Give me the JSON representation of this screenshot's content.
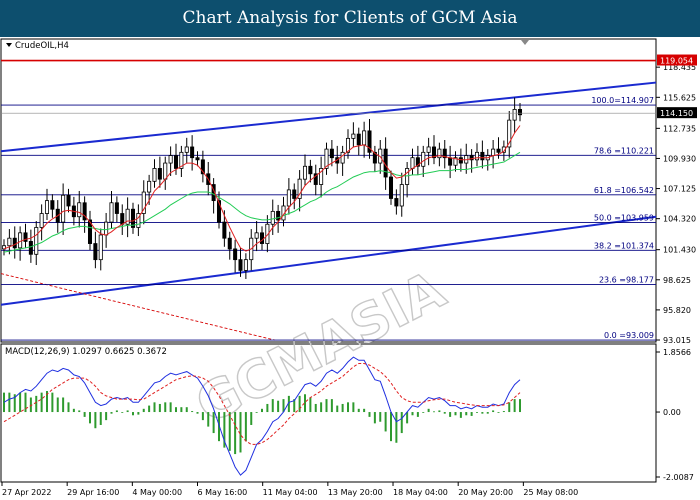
{
  "header": {
    "title": "Chart Analysis for Clients of GCM Asia"
  },
  "chart_window": {
    "symbol_label": "CrudeOIL,H4",
    "macd_label": "MACD(12,26,9) 1.0297 0.6625 0.3672",
    "watermark": "GCMASIA"
  },
  "colors": {
    "title_bg": "#0d4f6e",
    "up_candle": "#ffffff",
    "down_candle": "#000000",
    "channel": "#1a2ad0",
    "ma_fast": "#e02020",
    "ma_slow": "#22cc55",
    "resistance": "#d60000",
    "macd_hist": "#2e9a2e",
    "macd_main": "#2030e0",
    "macd_signal": "#e02020"
  },
  "chart_data": [
    {
      "type": "candlestick",
      "title": "CrudeOIL,H4",
      "ylim": [
        93.015,
        120.5
      ],
      "price_ticks": [
        "118.435",
        "115.625",
        "112.735",
        "109.930",
        "107.125",
        "104.320",
        "101.430",
        "98.625",
        "95.820",
        "93.015"
      ],
      "time_ticks": [
        "27 Apr 2022",
        "29 Apr 16:00",
        "4 May 00:00",
        "6 May 16:00",
        "11 May 04:00",
        "13 May 20:00",
        "18 May 04:00",
        "20 May 20:00",
        "25 May 08:00"
      ],
      "current_price": 114.15,
      "resistance_level": 119.054,
      "fibonacci_levels": [
        {
          "label": "100.0=114.907",
          "value": 114.907
        },
        {
          "label": "78.6 =110.221",
          "value": 110.221
        },
        {
          "label": "61.8 =106.542",
          "value": 106.542
        },
        {
          "label": "50.0 =103.959",
          "value": 103.959
        },
        {
          "label": "38.2 =101.374",
          "value": 101.374
        },
        {
          "label": "23.6 =98.177",
          "value": 98.177
        },
        {
          "label": "0.0 =93.009",
          "value": 93.009
        }
      ],
      "closes": [
        101.8,
        102.5,
        101.6,
        103.0,
        102.2,
        101.0,
        103.5,
        104.8,
        106.0,
        105.2,
        104.0,
        106.5,
        105.5,
        104.5,
        105.8,
        104.2,
        102.0,
        100.5,
        102.8,
        104.0,
        105.8,
        104.8,
        103.8,
        105.2,
        103.5,
        104.8,
        106.8,
        107.8,
        109.0,
        108.0,
        109.5,
        110.2,
        109.0,
        110.5,
        111.0,
        110.0,
        109.8,
        108.5,
        107.5,
        106.0,
        104.0,
        102.5,
        101.5,
        100.5,
        99.5,
        100.5,
        102.5,
        103.0,
        102.0,
        103.8,
        105.0,
        104.2,
        105.5,
        107.0,
        106.2,
        108.0,
        109.2,
        108.5,
        107.5,
        109.0,
        110.8,
        110.0,
        109.5,
        110.5,
        111.8,
        112.2,
        111.2,
        112.5,
        110.5,
        109.5,
        110.8,
        108.2,
        106.2,
        105.5,
        107.5,
        109.0,
        110.0,
        109.2,
        110.5,
        111.0,
        110.0,
        110.8,
        110.0,
        109.3,
        110.0,
        109.5,
        110.2,
        109.8,
        110.5,
        109.8,
        110.2,
        110.8,
        110.5,
        111.0,
        113.5,
        114.5,
        114.0
      ],
      "ma_fast": [
        101.5,
        101.7,
        101.9,
        102.2,
        102.4,
        102.5,
        102.8,
        103.3,
        103.9,
        104.3,
        104.6,
        105.0,
        105.1,
        105.0,
        104.9,
        104.6,
        104.0,
        103.3,
        102.9,
        102.8,
        103.1,
        103.5,
        103.8,
        104.1,
        104.1,
        104.4,
        105.2,
        106.0,
        106.9,
        107.4,
        108.0,
        108.6,
        108.9,
        109.2,
        109.5,
        109.5,
        109.3,
        108.7,
        108.0,
        107.0,
        105.8,
        104.6,
        103.5,
        102.5,
        101.6,
        101.3,
        101.5,
        102.0,
        102.3,
        102.8,
        103.5,
        104.0,
        104.7,
        105.4,
        105.9,
        106.6,
        107.4,
        107.9,
        108.3,
        108.7,
        109.2,
        109.5,
        109.8,
        110.2,
        110.6,
        111.0,
        111.1,
        111.2,
        110.9,
        110.4,
        110.1,
        109.3,
        108.6,
        108.1,
        108.2,
        108.6,
        109.0,
        109.3,
        109.7,
        110.0,
        110.1,
        110.2,
        110.1,
        110.0,
        109.9,
        109.8,
        109.8,
        109.9,
        110.0,
        110.0,
        110.0,
        110.2,
        110.3,
        110.6,
        111.4,
        112.3,
        113.0
      ],
      "ma_slow": [
        101.2,
        101.3,
        101.4,
        101.5,
        101.6,
        101.7,
        101.9,
        102.1,
        102.4,
        102.7,
        102.9,
        103.2,
        103.4,
        103.5,
        103.6,
        103.6,
        103.5,
        103.4,
        103.3,
        103.3,
        103.4,
        103.5,
        103.6,
        103.7,
        103.7,
        103.8,
        104.0,
        104.3,
        104.6,
        104.9,
        105.2,
        105.6,
        105.9,
        106.2,
        106.5,
        106.7,
        106.8,
        106.8,
        106.8,
        106.6,
        106.3,
        106.0,
        105.7,
        105.3,
        104.9,
        104.6,
        104.4,
        104.3,
        104.2,
        104.2,
        104.3,
        104.4,
        104.6,
        104.8,
        105.0,
        105.3,
        105.6,
        105.9,
        106.1,
        106.4,
        106.8,
        107.1,
        107.3,
        107.6,
        107.9,
        108.2,
        108.4,
        108.6,
        108.7,
        108.7,
        108.8,
        108.7,
        108.6,
        108.4,
        108.3,
        108.3,
        108.4,
        108.4,
        108.5,
        108.6,
        108.7,
        108.8,
        108.8,
        108.8,
        108.9,
        108.9,
        108.9,
        109.0,
        109.1,
        109.2,
        109.3,
        109.4,
        109.5,
        109.6,
        109.9,
        110.2,
        110.5
      ]
    },
    {
      "type": "macd",
      "title": "MACD(12,26,9)",
      "ylim": [
        -2.0087,
        1.8566
      ],
      "ticks": [
        "1.8566",
        "0.00",
        "-2.0087"
      ],
      "macd_main": [
        0.3,
        0.4,
        0.45,
        0.6,
        0.7,
        0.65,
        0.8,
        1.0,
        1.2,
        1.3,
        1.25,
        1.35,
        1.3,
        1.15,
        1.1,
        0.9,
        0.6,
        0.3,
        0.2,
        0.25,
        0.4,
        0.45,
        0.4,
        0.45,
        0.3,
        0.3,
        0.5,
        0.7,
        0.9,
        0.95,
        1.1,
        1.2,
        1.15,
        1.2,
        1.25,
        1.15,
        1.05,
        0.8,
        0.5,
        0.1,
        -0.4,
        -0.9,
        -1.3,
        -1.7,
        -1.95,
        -1.8,
        -1.4,
        -1.0,
        -0.85,
        -0.6,
        -0.3,
        -0.2,
        0.0,
        0.3,
        0.35,
        0.6,
        0.85,
        0.9,
        0.8,
        0.95,
        1.2,
        1.3,
        1.2,
        1.35,
        1.55,
        1.7,
        1.6,
        1.6,
        1.3,
        1.0,
        0.95,
        0.5,
        0.0,
        -0.3,
        -0.2,
        0.0,
        0.2,
        0.15,
        0.3,
        0.45,
        0.4,
        0.45,
        0.35,
        0.2,
        0.2,
        0.1,
        0.15,
        0.1,
        0.2,
        0.15,
        0.15,
        0.25,
        0.2,
        0.25,
        0.6,
        0.85,
        1.0
      ],
      "macd_signal": [
        -0.3,
        -0.2,
        -0.1,
        0.0,
        0.1,
        0.2,
        0.3,
        0.4,
        0.55,
        0.7,
        0.8,
        0.9,
        1.0,
        1.05,
        1.05,
        1.05,
        0.95,
        0.8,
        0.6,
        0.5,
        0.45,
        0.4,
        0.4,
        0.4,
        0.4,
        0.38,
        0.4,
        0.5,
        0.6,
        0.7,
        0.8,
        0.9,
        1.0,
        1.05,
        1.1,
        1.12,
        1.1,
        1.05,
        0.95,
        0.75,
        0.5,
        0.2,
        -0.1,
        -0.4,
        -0.7,
        -0.9,
        -1.0,
        -1.0,
        -0.95,
        -0.85,
        -0.7,
        -0.55,
        -0.4,
        -0.2,
        -0.05,
        0.1,
        0.3,
        0.45,
        0.55,
        0.65,
        0.8,
        0.9,
        1.0,
        1.1,
        1.25,
        1.4,
        1.5,
        1.5,
        1.45,
        1.35,
        1.25,
        1.1,
        0.9,
        0.65,
        0.45,
        0.35,
        0.3,
        0.3,
        0.3,
        0.35,
        0.38,
        0.4,
        0.4,
        0.35,
        0.3,
        0.28,
        0.25,
        0.22,
        0.2,
        0.2,
        0.2,
        0.2,
        0.2,
        0.22,
        0.3,
        0.45,
        0.6
      ],
      "histogram": [
        0.6,
        0.6,
        0.55,
        0.6,
        0.6,
        0.45,
        0.5,
        0.6,
        0.65,
        0.6,
        0.45,
        0.45,
        0.3,
        0.1,
        0.05,
        -0.15,
        -0.35,
        -0.5,
        -0.4,
        -0.25,
        -0.05,
        0.05,
        0.0,
        0.05,
        -0.1,
        -0.08,
        0.1,
        0.2,
        0.3,
        0.25,
        0.3,
        0.3,
        0.15,
        0.15,
        0.15,
        0.03,
        -0.05,
        -0.25,
        -0.45,
        -0.65,
        -0.9,
        -1.1,
        -1.2,
        -1.3,
        -1.25,
        -0.9,
        -0.4,
        0.0,
        0.1,
        0.25,
        0.4,
        0.35,
        0.4,
        0.5,
        0.4,
        0.5,
        0.55,
        0.45,
        0.25,
        0.3,
        0.4,
        0.4,
        0.2,
        0.25,
        0.3,
        0.3,
        0.1,
        0.1,
        -0.15,
        -0.35,
        -0.3,
        -0.6,
        -0.9,
        -0.95,
        -0.65,
        -0.35,
        -0.1,
        -0.15,
        0.0,
        0.1,
        0.02,
        0.05,
        -0.05,
        -0.15,
        -0.1,
        -0.18,
        -0.1,
        -0.12,
        0.0,
        -0.05,
        -0.05,
        0.05,
        0.0,
        0.03,
        0.3,
        0.4,
        0.4
      ]
    }
  ]
}
